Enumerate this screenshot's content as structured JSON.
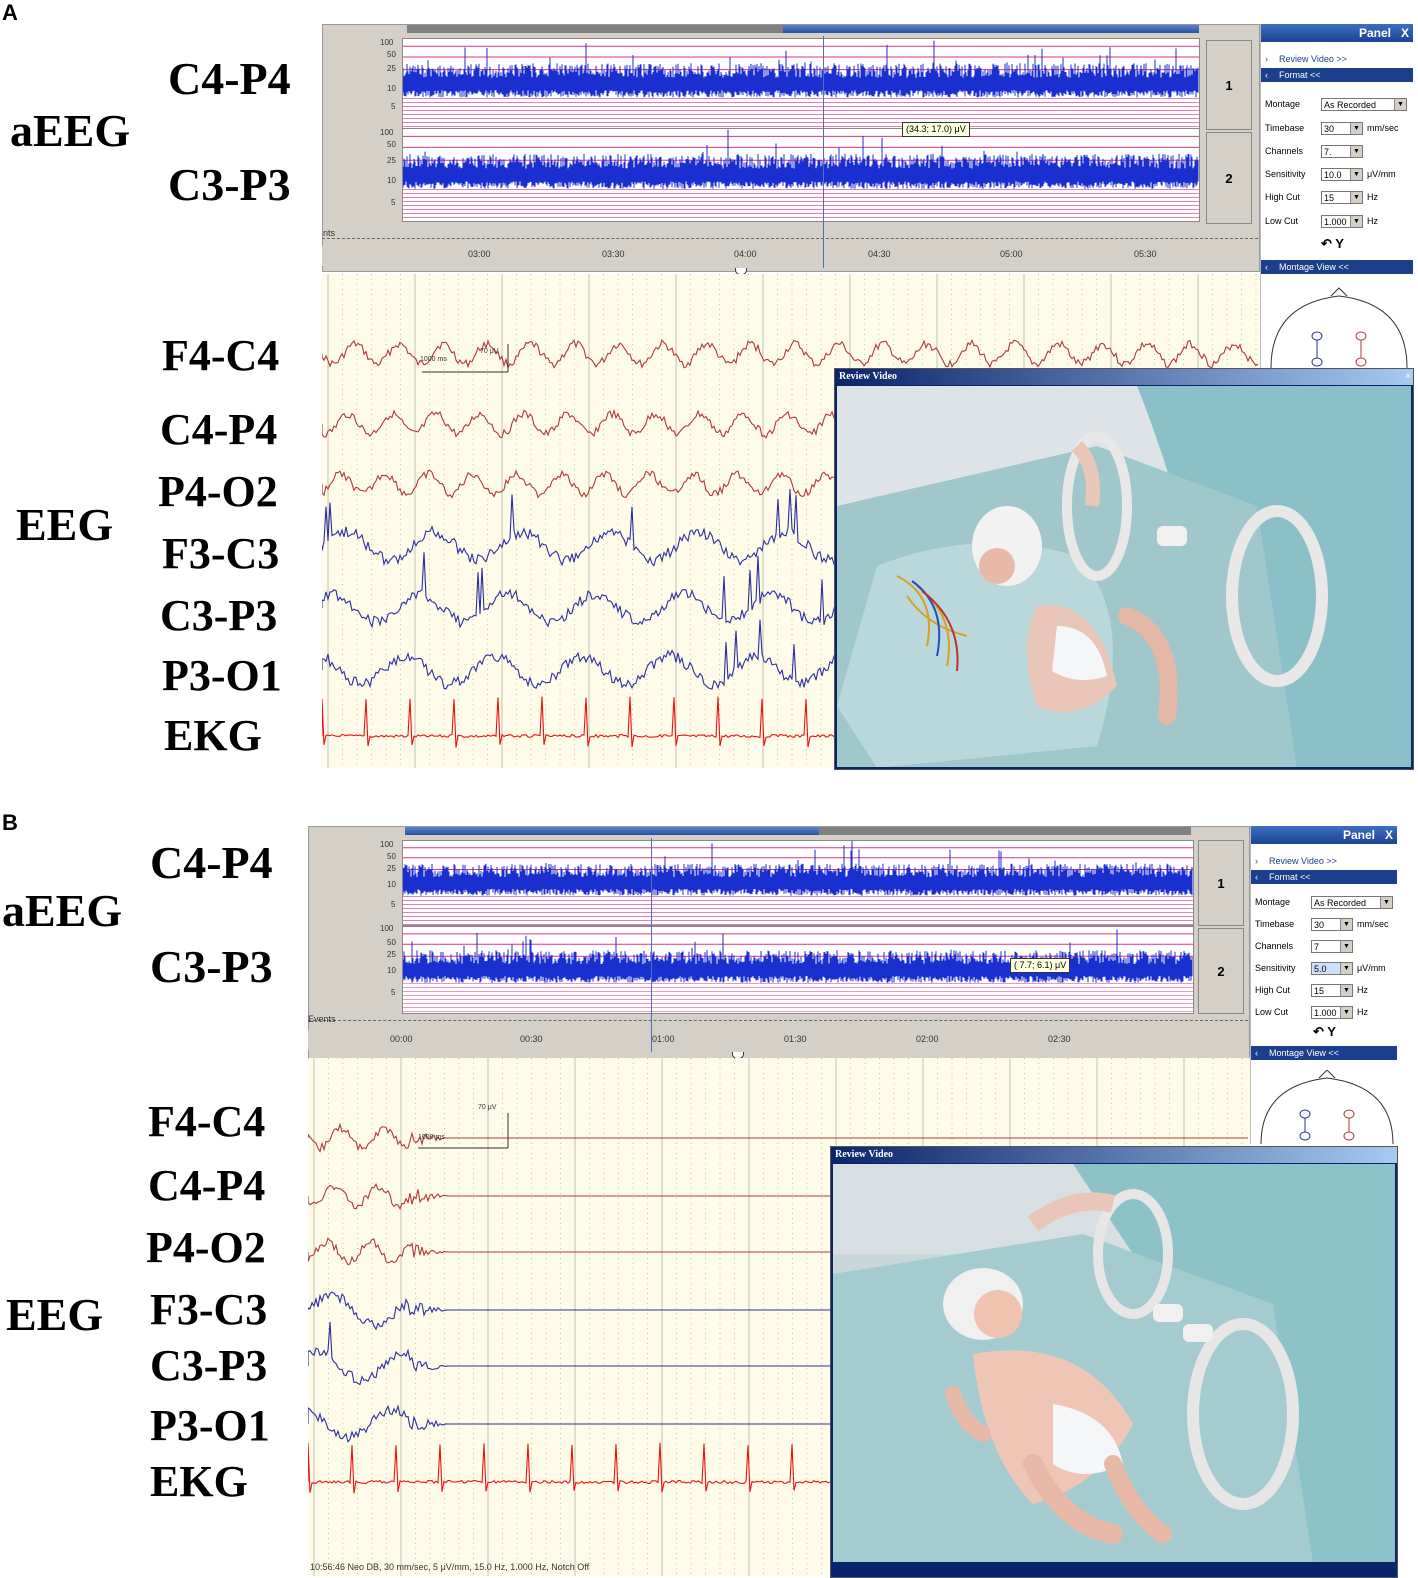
{
  "panels": [
    {
      "letter": "A",
      "aeeg_label": "aEEG",
      "eeg_label": "EEG",
      "trend_channels": [
        "C4-P4",
        "C3-P3"
      ],
      "trend_numbers": [
        "1",
        "2"
      ],
      "trend_scale": [
        "100",
        "50",
        "25",
        "10",
        "5"
      ],
      "events_label": "nts",
      "time_ticks": [
        "03:00",
        "03:30",
        "04:00",
        "04:30",
        "05:00",
        "05:30"
      ],
      "tooltip": "(34.3; 17.0) μV",
      "eeg_channels": [
        "F4-C4",
        "C4-P4",
        "P4-O2",
        "F3-C3",
        "C3-P3",
        "P3-O1",
        "EKG"
      ],
      "scale_time": "1000 ms",
      "scale_amp": "70 μV",
      "side_panel": {
        "title": "Panel",
        "close": "X",
        "review_video": "Review Video >>",
        "format": "Format <<",
        "rows": [
          {
            "label": "Montage",
            "value": "As Recorded",
            "unit": ""
          },
          {
            "label": "Timebase",
            "value": "30",
            "unit": "mm/sec"
          },
          {
            "label": "Channels",
            "value": "7.",
            "unit": ""
          },
          {
            "label": "Sensitivity",
            "value": "10.0",
            "unit": "μV/mm"
          },
          {
            "label": "High Cut",
            "value": "15",
            "unit": "Hz"
          },
          {
            "label": "Low Cut",
            "value": "1.000",
            "unit": "Hz"
          }
        ],
        "montage_view": "Montage View <<"
      },
      "video_title": "Review Video",
      "status_text": ""
    },
    {
      "letter": "B",
      "aeeg_label": "aEEG",
      "eeg_label": "EEG",
      "trend_channels": [
        "C4-P4",
        "C3-P3"
      ],
      "trend_numbers": [
        "1",
        "2"
      ],
      "trend_scale": [
        "100",
        "50",
        "25",
        "10",
        "5"
      ],
      "events_label": "Events",
      "time_ticks": [
        "00:00",
        "00:30",
        "01:00",
        "01:30",
        "02:00",
        "02:30"
      ],
      "tooltip": "( 7.7; 6.1) μV",
      "eeg_channels": [
        "F4-C4",
        "C4-P4",
        "P4-O2",
        "F3-C3",
        "C3-P3",
        "P3-O1",
        "EKG"
      ],
      "scale_time": "1000 ms",
      "scale_amp": "70 μV",
      "side_panel": {
        "title": "Panel",
        "close": "X",
        "review_video": "Review Video >>",
        "format": "Format <<",
        "rows": [
          {
            "label": "Montage",
            "value": "As Recorded",
            "unit": ""
          },
          {
            "label": "Timebase",
            "value": "30",
            "unit": "mm/sec"
          },
          {
            "label": "Channels",
            "value": "7",
            "unit": ""
          },
          {
            "label": "Sensitivity",
            "value": "5.0",
            "unit": "μV/mm"
          },
          {
            "label": "High Cut",
            "value": "15",
            "unit": "Hz"
          },
          {
            "label": "Low Cut",
            "value": "1.000",
            "unit": "Hz"
          }
        ],
        "montage_view": "Montage View <<"
      },
      "video_title": "Review Video",
      "status_text": "10:56:46 Neo DB, 30 mm/sec, 5 μV/mm, 15.0 Hz, 1.000 Hz, Notch Off"
    }
  ],
  "colors": {
    "trend_blue": "#1a2fd0",
    "trend_pink": "#e0308a",
    "eeg_right": "#b03838",
    "eeg_left": "#2a2f9c",
    "ekg": "#ee1111",
    "eeg_bg": "#fefbe9",
    "title_bar": "#1b3f8c"
  }
}
